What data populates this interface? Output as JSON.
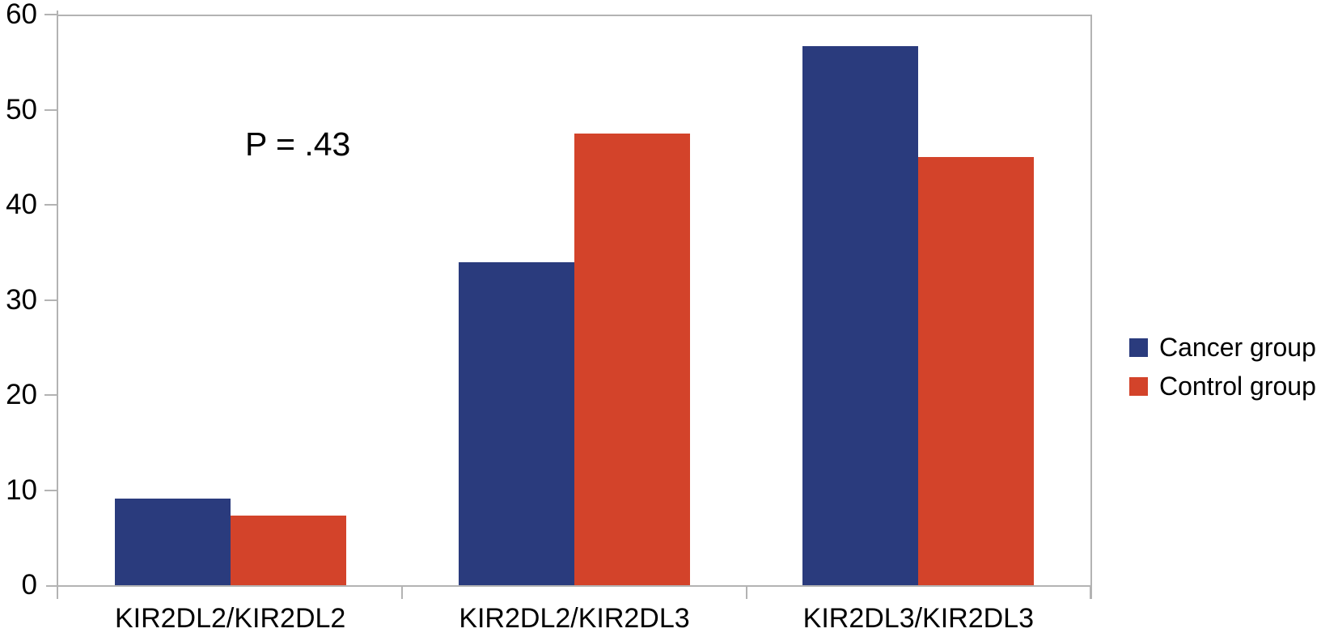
{
  "chart_data": {
    "type": "bar",
    "title": "",
    "xlabel": "",
    "ylabel": "",
    "categories": [
      "KIR2DL2/KIR2DL2",
      "KIR2DL2/KIR2DL3",
      "KIR2DL3/KIR2DL3"
    ],
    "series": [
      {
        "name": "Cancer group",
        "color": "#2a3b7d",
        "values": [
          9.1,
          34.0,
          56.7
        ]
      },
      {
        "name": "Control group",
        "color": "#d3432a",
        "values": [
          7.3,
          47.5,
          45.0
        ]
      }
    ],
    "ylim": [
      0,
      60
    ],
    "ytick_step": 10,
    "ytick_labels": [
      "0",
      "10",
      "20",
      "30",
      "40",
      "50",
      "60"
    ],
    "grid": "top-and-right-border-only",
    "legend_position": "right",
    "annotation": "P = .43"
  },
  "colors": {
    "axis": "#b3b3b3",
    "text": "#000000",
    "background": "#ffffff",
    "cancer_group": "#2a3b7d",
    "control_group": "#d3432a"
  }
}
